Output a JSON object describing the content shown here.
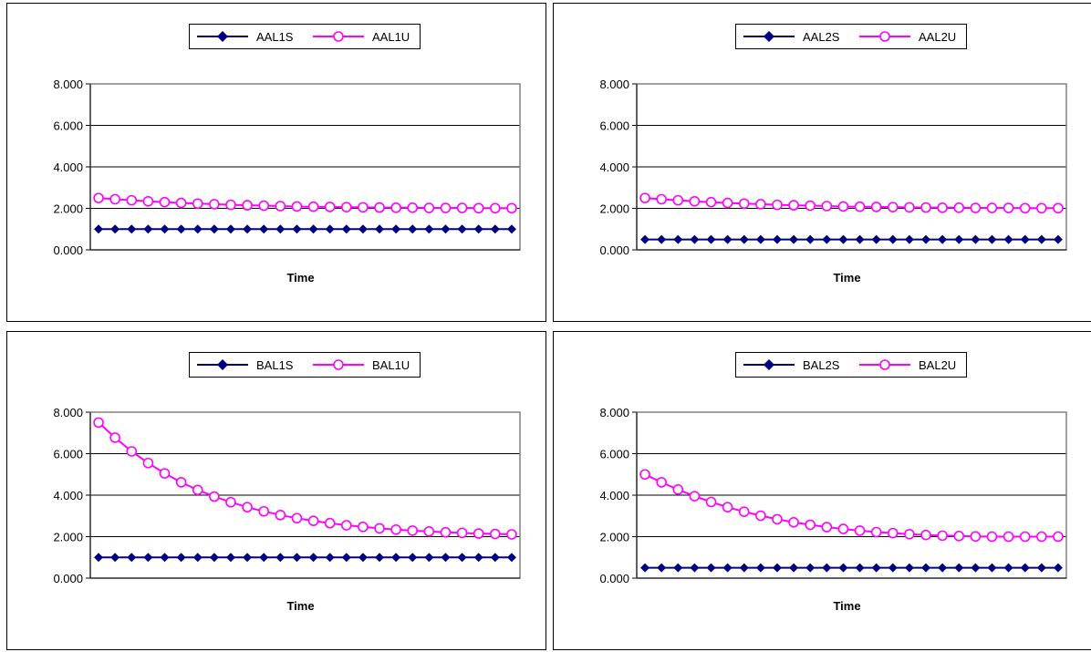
{
  "chart_data": [
    {
      "type": "line",
      "title": "",
      "xlabel": "Time",
      "ylabel": "",
      "ylim": [
        0,
        8
      ],
      "yticks": [
        "0.000",
        "2.000",
        "4.000",
        "6.000",
        "8.000"
      ],
      "grid": true,
      "legend": "top",
      "series": [
        {
          "name": "AAL1S",
          "color": "#000080",
          "marker": "diamond",
          "values": [
            1.0,
            1.0,
            1.0,
            1.0,
            1.0,
            1.0,
            1.0,
            1.0,
            1.0,
            1.0,
            1.0,
            1.0,
            1.0,
            1.0,
            1.0,
            1.0,
            1.0,
            1.0,
            1.0,
            1.0,
            1.0,
            1.0,
            1.0,
            1.0,
            1.0,
            1.0
          ]
        },
        {
          "name": "AAL1U",
          "color": "#ff00ff",
          "marker": "circle",
          "values": [
            2.5,
            2.44,
            2.39,
            2.34,
            2.3,
            2.26,
            2.23,
            2.2,
            2.17,
            2.15,
            2.13,
            2.11,
            2.09,
            2.08,
            2.07,
            2.06,
            2.05,
            2.04,
            2.03,
            2.03,
            2.02,
            2.02,
            2.02,
            2.01,
            2.01,
            2.01
          ]
        }
      ]
    },
    {
      "type": "line",
      "title": "",
      "xlabel": "Time",
      "ylabel": "",
      "ylim": [
        0,
        8
      ],
      "yticks": [
        "0.000",
        "2.000",
        "4.000",
        "6.000",
        "8.000"
      ],
      "grid": true,
      "legend": "top",
      "series": [
        {
          "name": "AAL2S",
          "color": "#000080",
          "marker": "diamond",
          "values": [
            0.5,
            0.5,
            0.5,
            0.5,
            0.5,
            0.5,
            0.5,
            0.5,
            0.5,
            0.5,
            0.5,
            0.5,
            0.5,
            0.5,
            0.5,
            0.5,
            0.5,
            0.5,
            0.5,
            0.5,
            0.5,
            0.5,
            0.5,
            0.5,
            0.5,
            0.5
          ]
        },
        {
          "name": "AAL2U",
          "color": "#ff00ff",
          "marker": "circle",
          "values": [
            2.5,
            2.44,
            2.39,
            2.34,
            2.3,
            2.26,
            2.23,
            2.2,
            2.17,
            2.15,
            2.13,
            2.11,
            2.09,
            2.08,
            2.07,
            2.06,
            2.05,
            2.04,
            2.03,
            2.03,
            2.02,
            2.02,
            2.02,
            2.01,
            2.01,
            2.01
          ]
        }
      ]
    },
    {
      "type": "line",
      "title": "",
      "xlabel": "Time",
      "ylabel": "",
      "ylim": [
        0,
        8
      ],
      "yticks": [
        "0.000",
        "2.000",
        "4.000",
        "6.000",
        "8.000"
      ],
      "grid": true,
      "legend": "top",
      "series": [
        {
          "name": "BAL1S",
          "color": "#000080",
          "marker": "diamond",
          "values": [
            1.0,
            1.0,
            1.0,
            1.0,
            1.0,
            1.0,
            1.0,
            1.0,
            1.0,
            1.0,
            1.0,
            1.0,
            1.0,
            1.0,
            1.0,
            1.0,
            1.0,
            1.0,
            1.0,
            1.0,
            1.0,
            1.0,
            1.0,
            1.0,
            1.0,
            1.0
          ]
        },
        {
          "name": "BAL1U",
          "color": "#ff00ff",
          "marker": "circle",
          "values": [
            7.5,
            6.77,
            6.11,
            5.55,
            5.05,
            4.62,
            4.25,
            3.93,
            3.66,
            3.42,
            3.22,
            3.04,
            2.89,
            2.76,
            2.65,
            2.55,
            2.47,
            2.4,
            2.34,
            2.29,
            2.25,
            2.21,
            2.18,
            2.15,
            2.13,
            2.11
          ]
        }
      ]
    },
    {
      "type": "line",
      "title": "",
      "xlabel": "Time",
      "ylabel": "",
      "ylim": [
        0,
        8
      ],
      "yticks": [
        "0.000",
        "2.000",
        "4.000",
        "6.000",
        "8.000"
      ],
      "grid": true,
      "legend": "top",
      "series": [
        {
          "name": "BAL2S",
          "color": "#000080",
          "marker": "diamond",
          "values": [
            0.5,
            0.5,
            0.5,
            0.5,
            0.5,
            0.5,
            0.5,
            0.5,
            0.5,
            0.5,
            0.5,
            0.5,
            0.5,
            0.5,
            0.5,
            0.5,
            0.5,
            0.5,
            0.5,
            0.5,
            0.5,
            0.5,
            0.5,
            0.5,
            0.5,
            0.5
          ]
        },
        {
          "name": "BAL2U",
          "color": "#ff00ff",
          "marker": "circle",
          "values": [
            5.0,
            4.62,
            4.27,
            3.95,
            3.67,
            3.42,
            3.2,
            3.01,
            2.84,
            2.69,
            2.57,
            2.46,
            2.37,
            2.29,
            2.22,
            2.17,
            2.12,
            2.08,
            2.05,
            2.03,
            2.01,
            2.0,
            2.0,
            2.0,
            2.0,
            2.0
          ]
        }
      ]
    }
  ]
}
